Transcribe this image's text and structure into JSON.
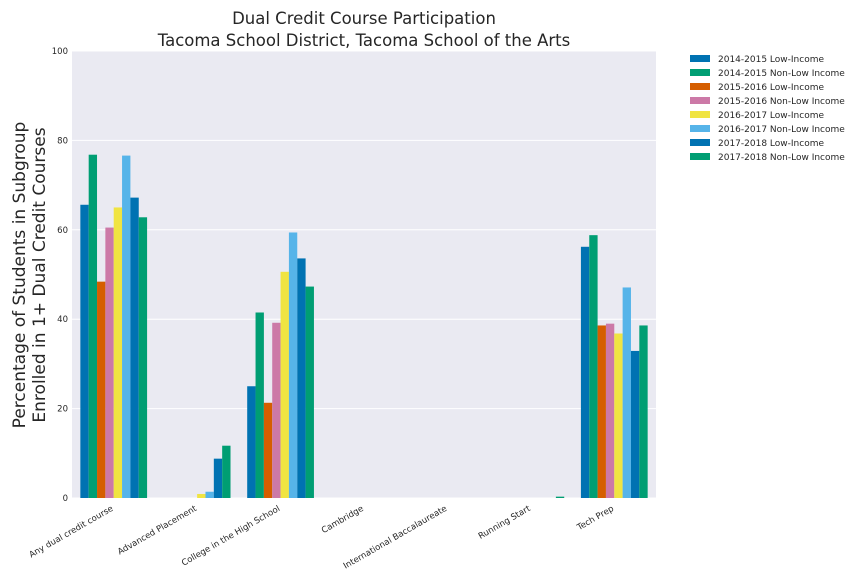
{
  "chart_data": {
    "type": "bar",
    "title": "Dual Credit Course Participation",
    "subtitle": "Tacoma School District, Tacoma School of the Arts",
    "ylabel_line1": "Percentage of Students in Subgroup",
    "ylabel_line2": "Enrolled in 1+ Dual Credit Courses",
    "xlabel": "",
    "ylim": [
      0,
      100
    ],
    "yticks": [
      0,
      20,
      40,
      60,
      80,
      100
    ],
    "grid": true,
    "legend_placement": "outside-top-right",
    "categories": [
      "Any dual credit course",
      "Advanced Placement",
      "College in the High School",
      "Cambridge",
      "International Baccalaureate",
      "Running Start",
      "Tech Prep"
    ],
    "series": [
      {
        "name": "2014-2015 Low-Income",
        "color": "#0072b2",
        "values": [
          65.6,
          0,
          25.0,
          0,
          0,
          0,
          56.2
        ]
      },
      {
        "name": "2014-2015 Non-Low Income",
        "color": "#009e73",
        "values": [
          76.8,
          0,
          41.5,
          0,
          0,
          0,
          58.8
        ]
      },
      {
        "name": "2015-2016 Low-Income",
        "color": "#d55e00",
        "values": [
          48.4,
          0,
          21.3,
          0,
          0,
          0,
          38.6
        ]
      },
      {
        "name": "2015-2016 Non-Low Income",
        "color": "#cc79a7",
        "values": [
          60.5,
          0,
          39.2,
          0,
          0,
          0,
          39.0
        ]
      },
      {
        "name": "2016-2017 Low-Income",
        "color": "#f0e442",
        "values": [
          65.0,
          0.9,
          50.6,
          0,
          0,
          0,
          36.8
        ]
      },
      {
        "name": "2016-2017 Non-Low Income",
        "color": "#56b4e9",
        "values": [
          76.6,
          1.4,
          59.4,
          0,
          0,
          0,
          47.1
        ]
      },
      {
        "name": "2017-2018 Low-Income",
        "color": "#0072b2",
        "values": [
          67.2,
          8.8,
          53.6,
          0,
          0,
          0,
          32.9
        ]
      },
      {
        "name": "2017-2018 Non-Low Income",
        "color": "#009e73",
        "values": [
          62.8,
          11.7,
          47.3,
          0,
          0,
          0.3,
          38.6
        ]
      }
    ]
  },
  "colors": {
    "plot_background": "#eaeaf2",
    "grid": "#ffffff",
    "text": "#262626"
  }
}
